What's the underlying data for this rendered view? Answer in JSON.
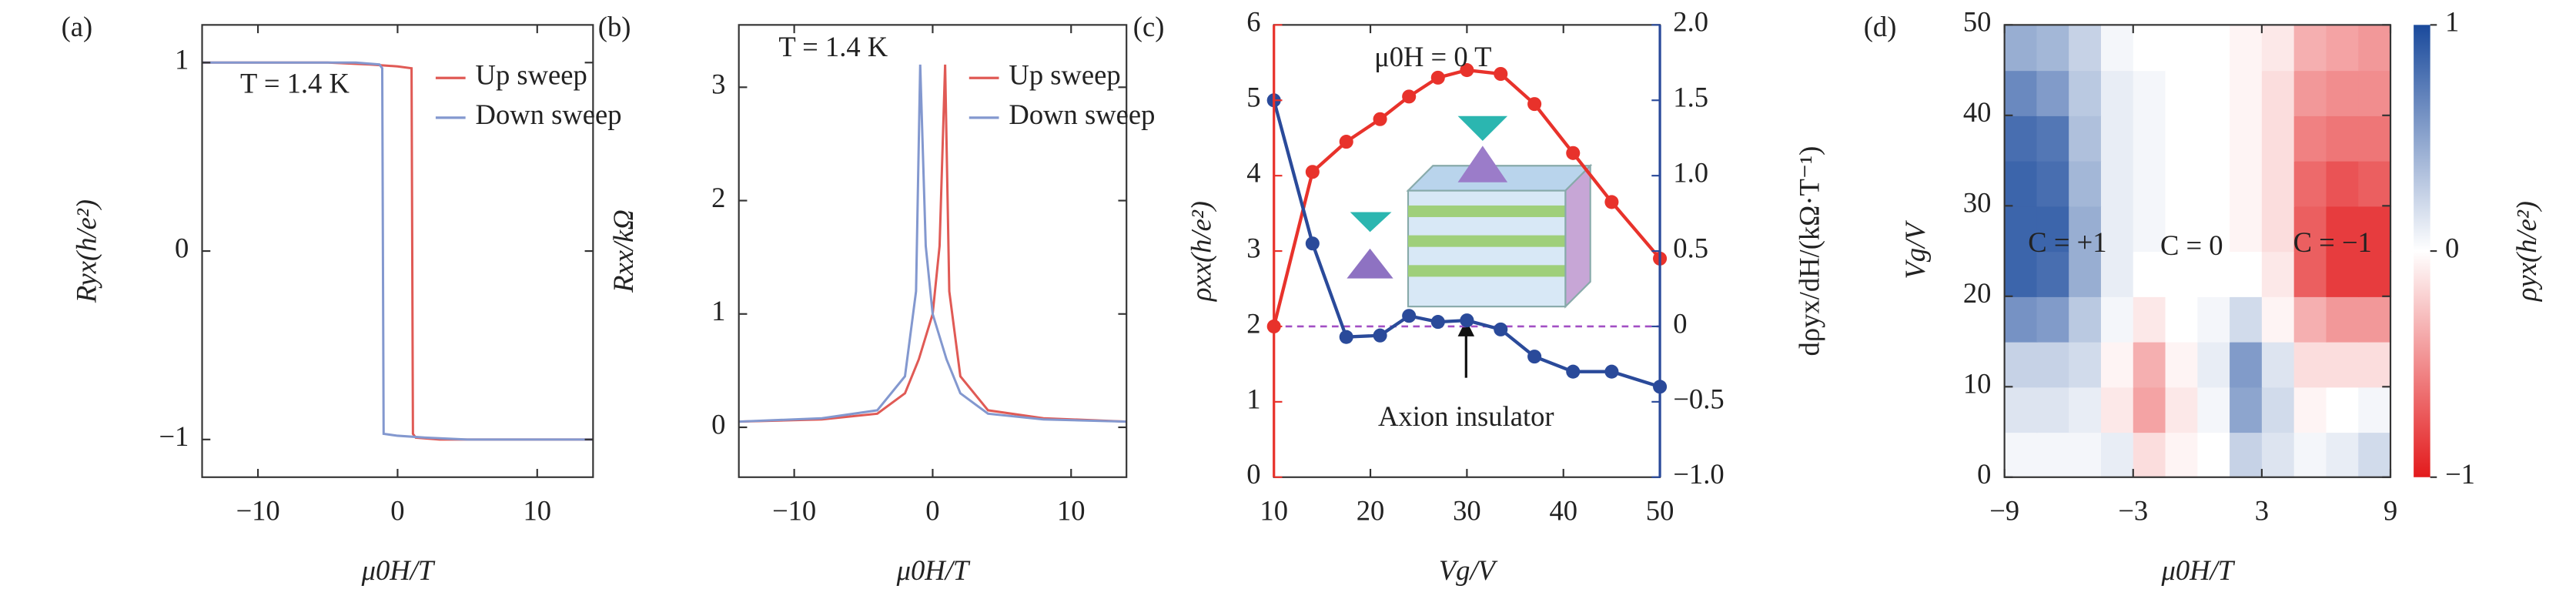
{
  "chart_data": [
    {
      "type": "line",
      "panel": "(a)",
      "xlabel": "μ0H/T",
      "ylabel": "Ryx(h/e²)",
      "annotations": [
        "T = 1.4 K"
      ],
      "xlim": [
        -14,
        14
      ],
      "xticks": [
        {
          "value": -10,
          "label": "−10"
        },
        0,
        10
      ],
      "ylim": [
        -1.2,
        1.2
      ],
      "yticks": [
        {
          "value": -1,
          "label": "−1"
        },
        0,
        1
      ],
      "legend": "upper right",
      "series": [
        {
          "name": "Up sweep",
          "color": "#e05a55",
          "x": [
            -14,
            -5,
            -2,
            0,
            1,
            1.1,
            1.3,
            3,
            14
          ],
          "values": [
            1,
            1,
            0.99,
            0.98,
            0.97,
            -0.97,
            -0.99,
            -1,
            -1
          ]
        },
        {
          "name": "Down sweep",
          "color": "#8398cf",
          "x": [
            14,
            5,
            2,
            0,
            -1,
            -1.1,
            -1.3,
            -3,
            -14
          ],
          "values": [
            -1,
            -1,
            -0.99,
            -0.98,
            -0.97,
            0.97,
            0.99,
            1,
            1
          ]
        }
      ]
    },
    {
      "type": "line",
      "panel": "(b)",
      "xlabel": "μ0H/T",
      "ylabel": "Rxx/kΩ",
      "annotations": [
        "T = 1.4 K"
      ],
      "xlim": [
        -14,
        14
      ],
      "xticks": [
        {
          "value": -10,
          "label": "−10"
        },
        0,
        10
      ],
      "ylim": [
        -0.44,
        3.55
      ],
      "yticks": [
        0,
        1,
        2,
        3
      ],
      "legend": "upper right",
      "series": [
        {
          "name": "Up sweep",
          "color": "#e05a55",
          "x": [
            -14,
            -8,
            -4,
            -2,
            -1,
            0,
            0.5,
            0.9,
            1.2,
            2,
            4,
            8,
            14
          ],
          "values": [
            0.05,
            0.07,
            0.12,
            0.3,
            0.6,
            1.0,
            1.6,
            3.2,
            1.2,
            0.45,
            0.15,
            0.08,
            0.05
          ]
        },
        {
          "name": "Down sweep",
          "color": "#8398cf",
          "x": [
            14,
            8,
            4,
            2,
            1,
            0,
            -0.5,
            -0.9,
            -1.2,
            -2,
            -4,
            -8,
            -14
          ],
          "values": [
            0.05,
            0.07,
            0.12,
            0.3,
            0.6,
            1.0,
            1.6,
            3.2,
            1.2,
            0.45,
            0.15,
            0.08,
            0.05
          ]
        }
      ]
    },
    {
      "type": "line",
      "panel": "(c)",
      "xlabel": "Vg/V",
      "ylabel": "ρxx(h/e²)",
      "y2label": "dρyx/dH/(kΩ·T⁻¹)",
      "annotations": [
        "μ0H = 0 T",
        "Axion insulator"
      ],
      "marker": "circle",
      "xlim": [
        10,
        50
      ],
      "xticks": [
        10,
        20,
        30,
        40,
        50
      ],
      "ylim": [
        0,
        6
      ],
      "yticks": [
        0,
        1,
        2,
        3,
        4,
        5,
        6
      ],
      "ycolor": "#e8322b",
      "y2lim": [
        -1,
        2
      ],
      "y2ticks": [
        {
          "value": -1,
          "label": "−1.0"
        },
        {
          "value": -0.5,
          "label": "−0.5"
        },
        0,
        0.5,
        {
          "value": 1,
          "label": "1.0"
        },
        1.5,
        {
          "value": 2,
          "label": "2.0"
        }
      ],
      "y2color": "#2a4a9a",
      "hlines": [
        {
          "value": 0,
          "axis": "y2",
          "color": "#a24fc4"
        }
      ],
      "series": [
        {
          "color": "#e8322b",
          "x": [
            10,
            14,
            17.5,
            21,
            24,
            27,
            30,
            33.5,
            37,
            41,
            45,
            50
          ],
          "values": [
            2.0,
            4.05,
            4.45,
            4.75,
            5.05,
            5.3,
            5.4,
            5.35,
            4.95,
            4.3,
            3.65,
            2.9
          ]
        },
        {
          "color": "#2a4a9a",
          "axis": "y2",
          "x": [
            10,
            14,
            17.5,
            21,
            24,
            27,
            30,
            33.5,
            37,
            41,
            45,
            50
          ],
          "values": [
            1.5,
            0.55,
            -0.07,
            -0.06,
            0.07,
            0.03,
            0.04,
            -0.02,
            -0.2,
            -0.3,
            -0.3,
            -0.4
          ]
        }
      ]
    },
    {
      "type": "heatmap",
      "panel": "(d)",
      "xlabel": "μ0H/T",
      "ylabel": "Vg/V",
      "annotations": [
        "C = +1",
        "C = 0",
        "C = −1"
      ],
      "xlim": [
        -9,
        9
      ],
      "xticks": [
        {
          "value": -9,
          "label": "−9"
        },
        {
          "value": -3,
          "label": "−3"
        },
        3,
        9
      ],
      "ylim": [
        0,
        50
      ],
      "yticks": [
        0,
        10,
        20,
        30,
        40,
        50
      ],
      "x": [
        -8.25,
        -6.75,
        -5.25,
        -3.75,
        -2.25,
        -0.75,
        0.75,
        2.25,
        3.75,
        5.25,
        6.75,
        8.25
      ],
      "y": [
        2.5,
        7.5,
        12.5,
        17.5,
        22.5,
        27.5,
        32.5,
        37.5,
        42.5,
        47.5
      ],
      "z": [
        [
          0.05,
          0.05,
          0.05,
          0.1,
          -0.15,
          -0.05,
          0.0,
          0.25,
          0.15,
          0.05,
          0.1,
          0.2
        ],
        [
          0.15,
          0.15,
          0.1,
          -0.1,
          -0.4,
          -0.1,
          0.05,
          0.5,
          0.2,
          -0.05,
          0.0,
          0.05
        ],
        [
          0.25,
          0.25,
          0.2,
          -0.05,
          -0.35,
          -0.05,
          0.1,
          0.55,
          0.15,
          -0.15,
          -0.15,
          -0.15
        ],
        [
          0.6,
          0.55,
          0.3,
          0.05,
          -0.1,
          0.0,
          0.05,
          0.2,
          -0.05,
          -0.35,
          -0.45,
          -0.45
        ],
        [
          0.85,
          0.8,
          0.45,
          0.1,
          0.0,
          0.0,
          0.0,
          0.0,
          -0.1,
          -0.7,
          -0.85,
          -0.85
        ],
        [
          0.85,
          0.85,
          0.45,
          0.1,
          0.05,
          0.0,
          0.0,
          -0.05,
          -0.15,
          -0.7,
          -0.85,
          -0.85
        ],
        [
          0.85,
          0.8,
          0.4,
          0.1,
          0.05,
          0.0,
          0.0,
          -0.05,
          -0.15,
          -0.65,
          -0.75,
          -0.7
        ],
        [
          0.8,
          0.75,
          0.35,
          0.1,
          0.05,
          0.0,
          0.0,
          -0.05,
          -0.15,
          -0.55,
          -0.6,
          -0.6
        ],
        [
          0.65,
          0.55,
          0.3,
          0.1,
          0.05,
          0.0,
          0.0,
          -0.05,
          -0.15,
          -0.45,
          -0.5,
          -0.5
        ],
        [
          0.45,
          0.4,
          0.25,
          0.05,
          0.0,
          0.0,
          0.0,
          -0.05,
          -0.1,
          -0.35,
          -0.4,
          -0.45
        ]
      ],
      "colorbar": {
        "lim": [
          -1,
          1
        ],
        "ticks": [
          1,
          0,
          {
            "value": -1,
            "label": "−1"
          }
        ],
        "label": "ρyx(h/e²)",
        "colors": [
          "#e31a1c",
          "#ffffff",
          "#1a4a9c"
        ]
      }
    }
  ]
}
